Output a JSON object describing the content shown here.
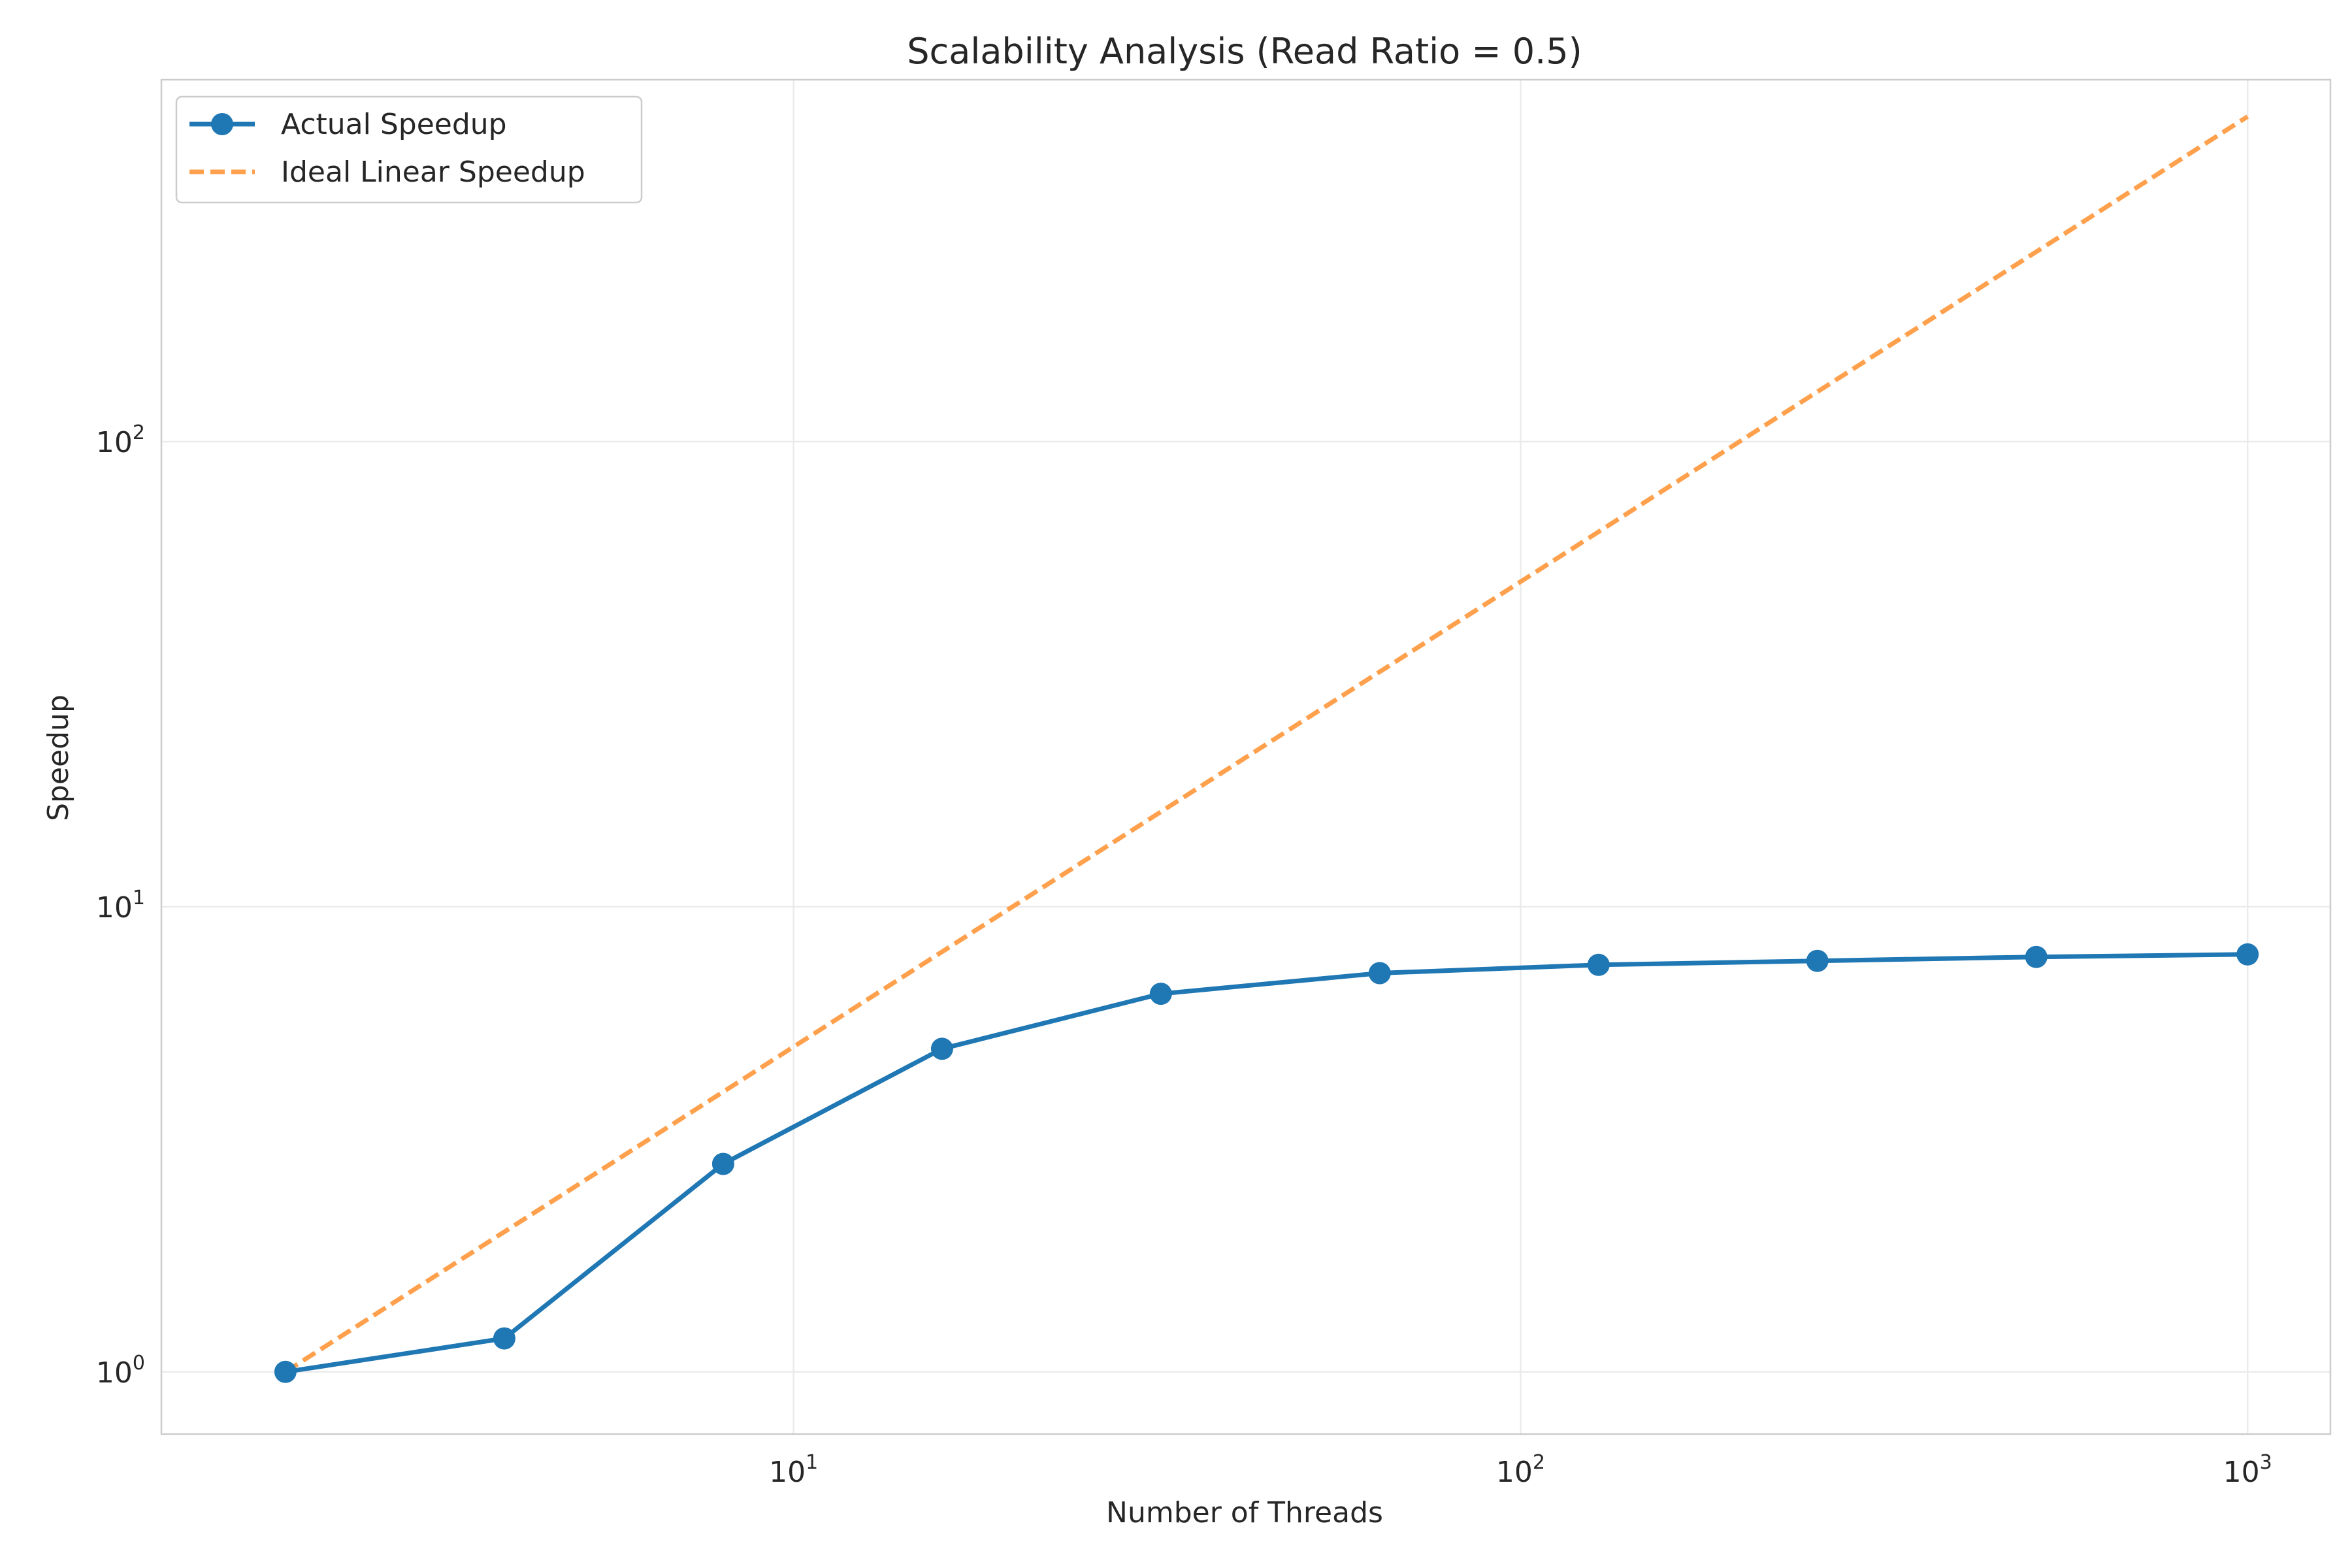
{
  "chart_data": {
    "type": "line",
    "title": "Scalability Analysis (Read Ratio = 0.5)",
    "xlabel": "Number of Threads",
    "ylabel": "Speedup",
    "xscale": "log",
    "yscale": "log",
    "xlim": [
      1.35,
      1300
    ],
    "ylim": [
      0.735,
      600
    ],
    "x_ticks": [
      {
        "value": 10,
        "base": "10",
        "exp": "1"
      },
      {
        "value": 100,
        "base": "10",
        "exp": "2"
      },
      {
        "value": 1000,
        "base": "10",
        "exp": "3"
      }
    ],
    "y_ticks": [
      {
        "value": 1,
        "base": "10",
        "exp": "0"
      },
      {
        "value": 10,
        "base": "10",
        "exp": "1"
      },
      {
        "value": 100,
        "base": "10",
        "exp": "2"
      }
    ],
    "grid": true,
    "legend_position": "top-left",
    "series": [
      {
        "name": "Actual Speedup",
        "style": "solid",
        "marker": "circle",
        "color": "#1f77b4",
        "x": [
          2,
          4,
          8,
          16,
          32,
          64,
          128,
          256,
          512,
          1000
        ],
        "y": [
          1.0,
          1.18,
          2.8,
          4.95,
          6.5,
          7.2,
          7.5,
          7.65,
          7.8,
          7.9
        ]
      },
      {
        "name": "Ideal Linear Speedup",
        "style": "dashed",
        "marker": "none",
        "color": "#ffa04d",
        "x": [
          2,
          1000
        ],
        "y": [
          1,
          500
        ]
      }
    ]
  }
}
